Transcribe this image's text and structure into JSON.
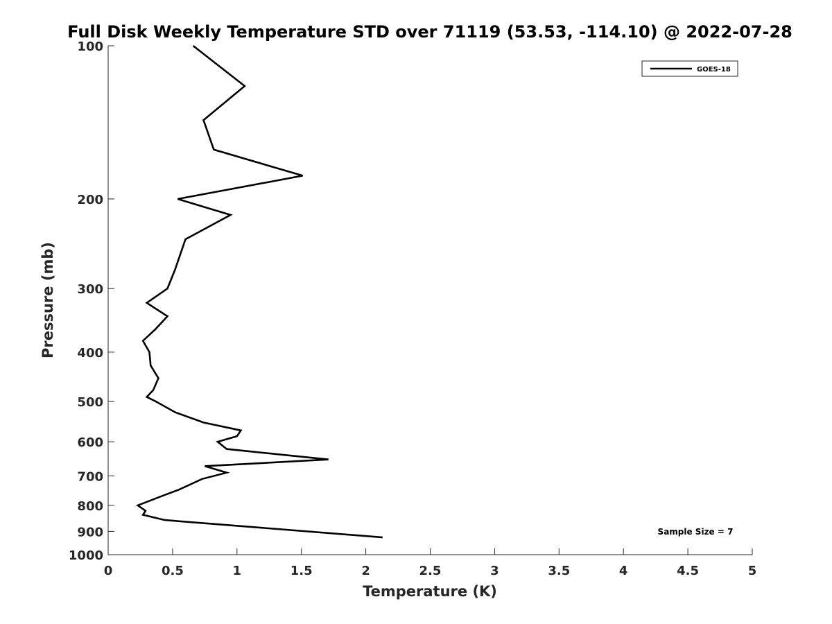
{
  "chart_data": {
    "type": "line",
    "title": "Full Disk Weekly Temperature STD over 71119 (53.53, -114.10) @ 2022-07-28",
    "xlabel": "Temperature (K)",
    "ylabel": "Pressure (mb)",
    "xlim": [
      0,
      5
    ],
    "ylim": [
      100,
      1000
    ],
    "y_scale": "log",
    "y_reversed": true,
    "x_ticks": [
      "0",
      "0.5",
      "1",
      "1.5",
      "2",
      "2.5",
      "3",
      "3.5",
      "4",
      "4.5",
      "5"
    ],
    "y_ticks": [
      "100",
      "200",
      "300",
      "400",
      "500",
      "600",
      "700",
      "800",
      "900",
      "1000"
    ],
    "grid": false,
    "legend": {
      "position": "top-right",
      "entries": [
        "GOES-18"
      ]
    },
    "annotation": "Sample Size = 7",
    "series": [
      {
        "name": "GOES-18",
        "color": "#000000",
        "points": [
          [
            0.66,
            100
          ],
          [
            1.06,
            120
          ],
          [
            0.74,
            140
          ],
          [
            0.82,
            160
          ],
          [
            1.51,
            180
          ],
          [
            0.54,
            200
          ],
          [
            0.95,
            215
          ],
          [
            0.6,
            240
          ],
          [
            0.52,
            275
          ],
          [
            0.46,
            300
          ],
          [
            0.3,
            320
          ],
          [
            0.46,
            340
          ],
          [
            0.37,
            360
          ],
          [
            0.27,
            380
          ],
          [
            0.32,
            400
          ],
          [
            0.33,
            425
          ],
          [
            0.39,
            450
          ],
          [
            0.35,
            475
          ],
          [
            0.3,
            490
          ],
          [
            0.37,
            500
          ],
          [
            0.52,
            525
          ],
          [
            0.74,
            550
          ],
          [
            1.03,
            570
          ],
          [
            1.0,
            585
          ],
          [
            0.85,
            600
          ],
          [
            0.92,
            620
          ],
          [
            1.71,
            650
          ],
          [
            0.75,
            670
          ],
          [
            0.92,
            690
          ],
          [
            0.73,
            710
          ],
          [
            0.55,
            745
          ],
          [
            0.4,
            770
          ],
          [
            0.23,
            800
          ],
          [
            0.29,
            820
          ],
          [
            0.27,
            835
          ],
          [
            0.44,
            855
          ],
          [
            2.13,
            925
          ]
        ]
      }
    ]
  }
}
